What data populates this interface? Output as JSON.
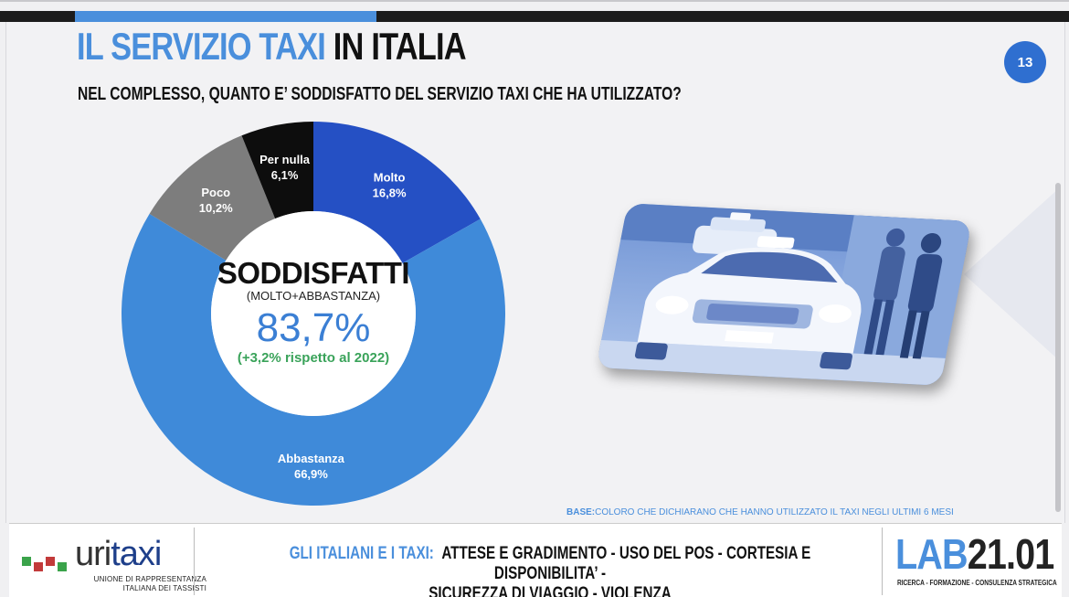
{
  "slide": {
    "title_part1": "IL SERVIZIO TAXI",
    "title_part2": "IN ITALIA",
    "page_number": "13",
    "question": "NEL COMPLESSO, QUANTO E’ SODDISFATTO DEL SERVIZIO TAXI CHE HA UTILIZZATO?",
    "base_label": "BASE:",
    "base_text": "COLORO CHE DICHIARANO CHE HANNO UTILIZZATO IL TAXI NEGLI ULTIMI 6 MESI"
  },
  "chart_data": {
    "type": "pie",
    "variant": "donut",
    "categories": [
      "Molto",
      "Abbastanza",
      "Poco",
      "Per nulla"
    ],
    "values": [
      16.8,
      66.9,
      10.2,
      6.1
    ],
    "value_labels": [
      "16,8%",
      "66,9%",
      "10,2%",
      "6,1%"
    ],
    "colors": [
      "#2550c4",
      "#3f8ad9",
      "#7d7d7d",
      "#0d0d0d"
    ],
    "center": {
      "title": "SODDISFATTI",
      "subtitle": "(MOLTO+ABBASTANZA)",
      "value": "83,7%",
      "delta": "(+3,2% rispetto al 2022)"
    }
  },
  "footer": {
    "logo_left_word_a": "uri",
    "logo_left_word_b": "taxi",
    "logo_left_sub_line1": "UNIONE DI RAPPRESENTANZA",
    "logo_left_sub_line2": "ITALIANA DEI TASSISTI",
    "lead": "GLI ITALIANI E I TAXI:",
    "line1": "ATTESE E GRADIMENTO - USO DEL POS - CORTESIA E DISPONIBILITA’ -",
    "line2": "SICUREZZA DI VIAGGIO - VIOLENZA",
    "logo_right_part1": "LAB",
    "logo_right_part2": "21.01",
    "logo_right_sub": "RICERCA - FORMAZIONE - CONSULENZA STRATEGICA"
  },
  "icons": {
    "photo": "taxi-photo",
    "logo_dots": "uritaxi-dots-icon"
  }
}
